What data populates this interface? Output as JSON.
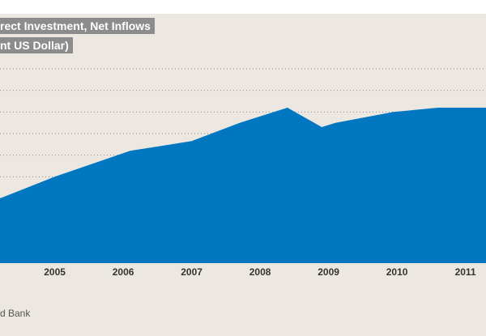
{
  "colors": {
    "background": "#ece8e1",
    "area": "#0077c0",
    "grid": "#8a8a8a",
    "title_bg": "#8c8c8c"
  },
  "chart_data": {
    "type": "area",
    "title": "rect Investment, Net Inflows",
    "subtitle": "nt US Dollar)",
    "source": "d Bank",
    "x_tick_labels": [
      "2005",
      "2006",
      "2007",
      "2008",
      "2009",
      "2010",
      "2011"
    ],
    "x_range": [
      2004.2,
      2011.3
    ],
    "y_range": [
      0,
      9
    ],
    "grid": "horizontal dotted",
    "series": [
      {
        "x": [
          2004.2,
          2005.0,
          2006.1,
          2006.5,
          2007.0,
          2007.7,
          2008.4,
          2008.9,
          2009.1,
          2009.95,
          2010.6,
          2011.3
        ],
        "values": [
          3.0,
          4.0,
          5.2,
          5.4,
          5.65,
          6.5,
          7.2,
          6.3,
          6.5,
          7.0,
          7.2,
          7.2
        ]
      }
    ]
  }
}
